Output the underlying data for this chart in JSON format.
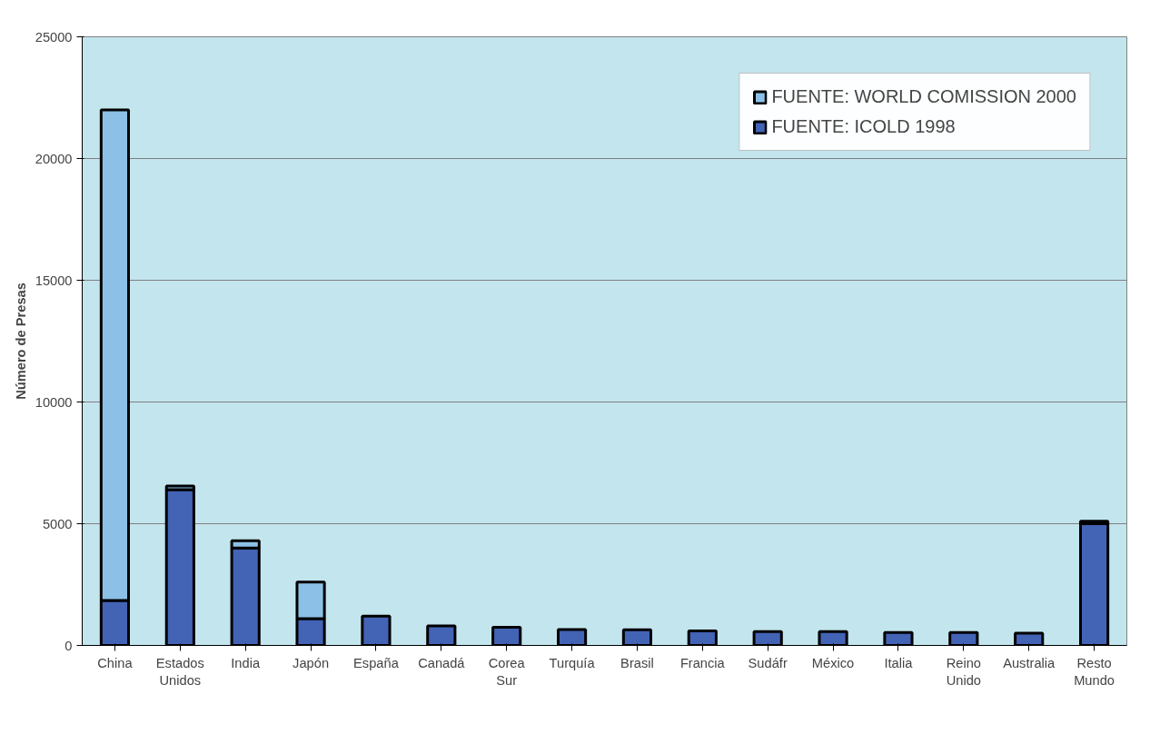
{
  "chart_data": {
    "type": "bar",
    "stacked": true,
    "ylabel": "Número de Presas",
    "categories": [
      "China",
      "Estados Unidos",
      "India",
      "Japón",
      "España",
      "Canadá",
      "Corea Sur",
      "Turquía",
      "Brasil",
      "Francia",
      "Sudáfr",
      "México",
      "Italia",
      "Reino Unido",
      "Australia",
      "Resto Mundo"
    ],
    "series": [
      {
        "name": "FUENTE: ICOLD 1998",
        "color": "#4363b5",
        "values": [
          1850,
          6400,
          4000,
          1100,
          1200,
          800,
          750,
          650,
          640,
          600,
          570,
          570,
          530,
          530,
          500,
          5000
        ]
      },
      {
        "name": "FUENTE: WORLD COMISSION 2000",
        "color": "#8dc0e6",
        "values": [
          20150,
          150,
          300,
          1500,
          null,
          null,
          null,
          null,
          null,
          null,
          null,
          null,
          null,
          null,
          null,
          100
        ]
      }
    ],
    "ylim": [
      0,
      25000
    ],
    "yticks": [
      0,
      5000,
      10000,
      15000,
      20000,
      25000
    ],
    "grid": "y",
    "legend": "top right"
  }
}
